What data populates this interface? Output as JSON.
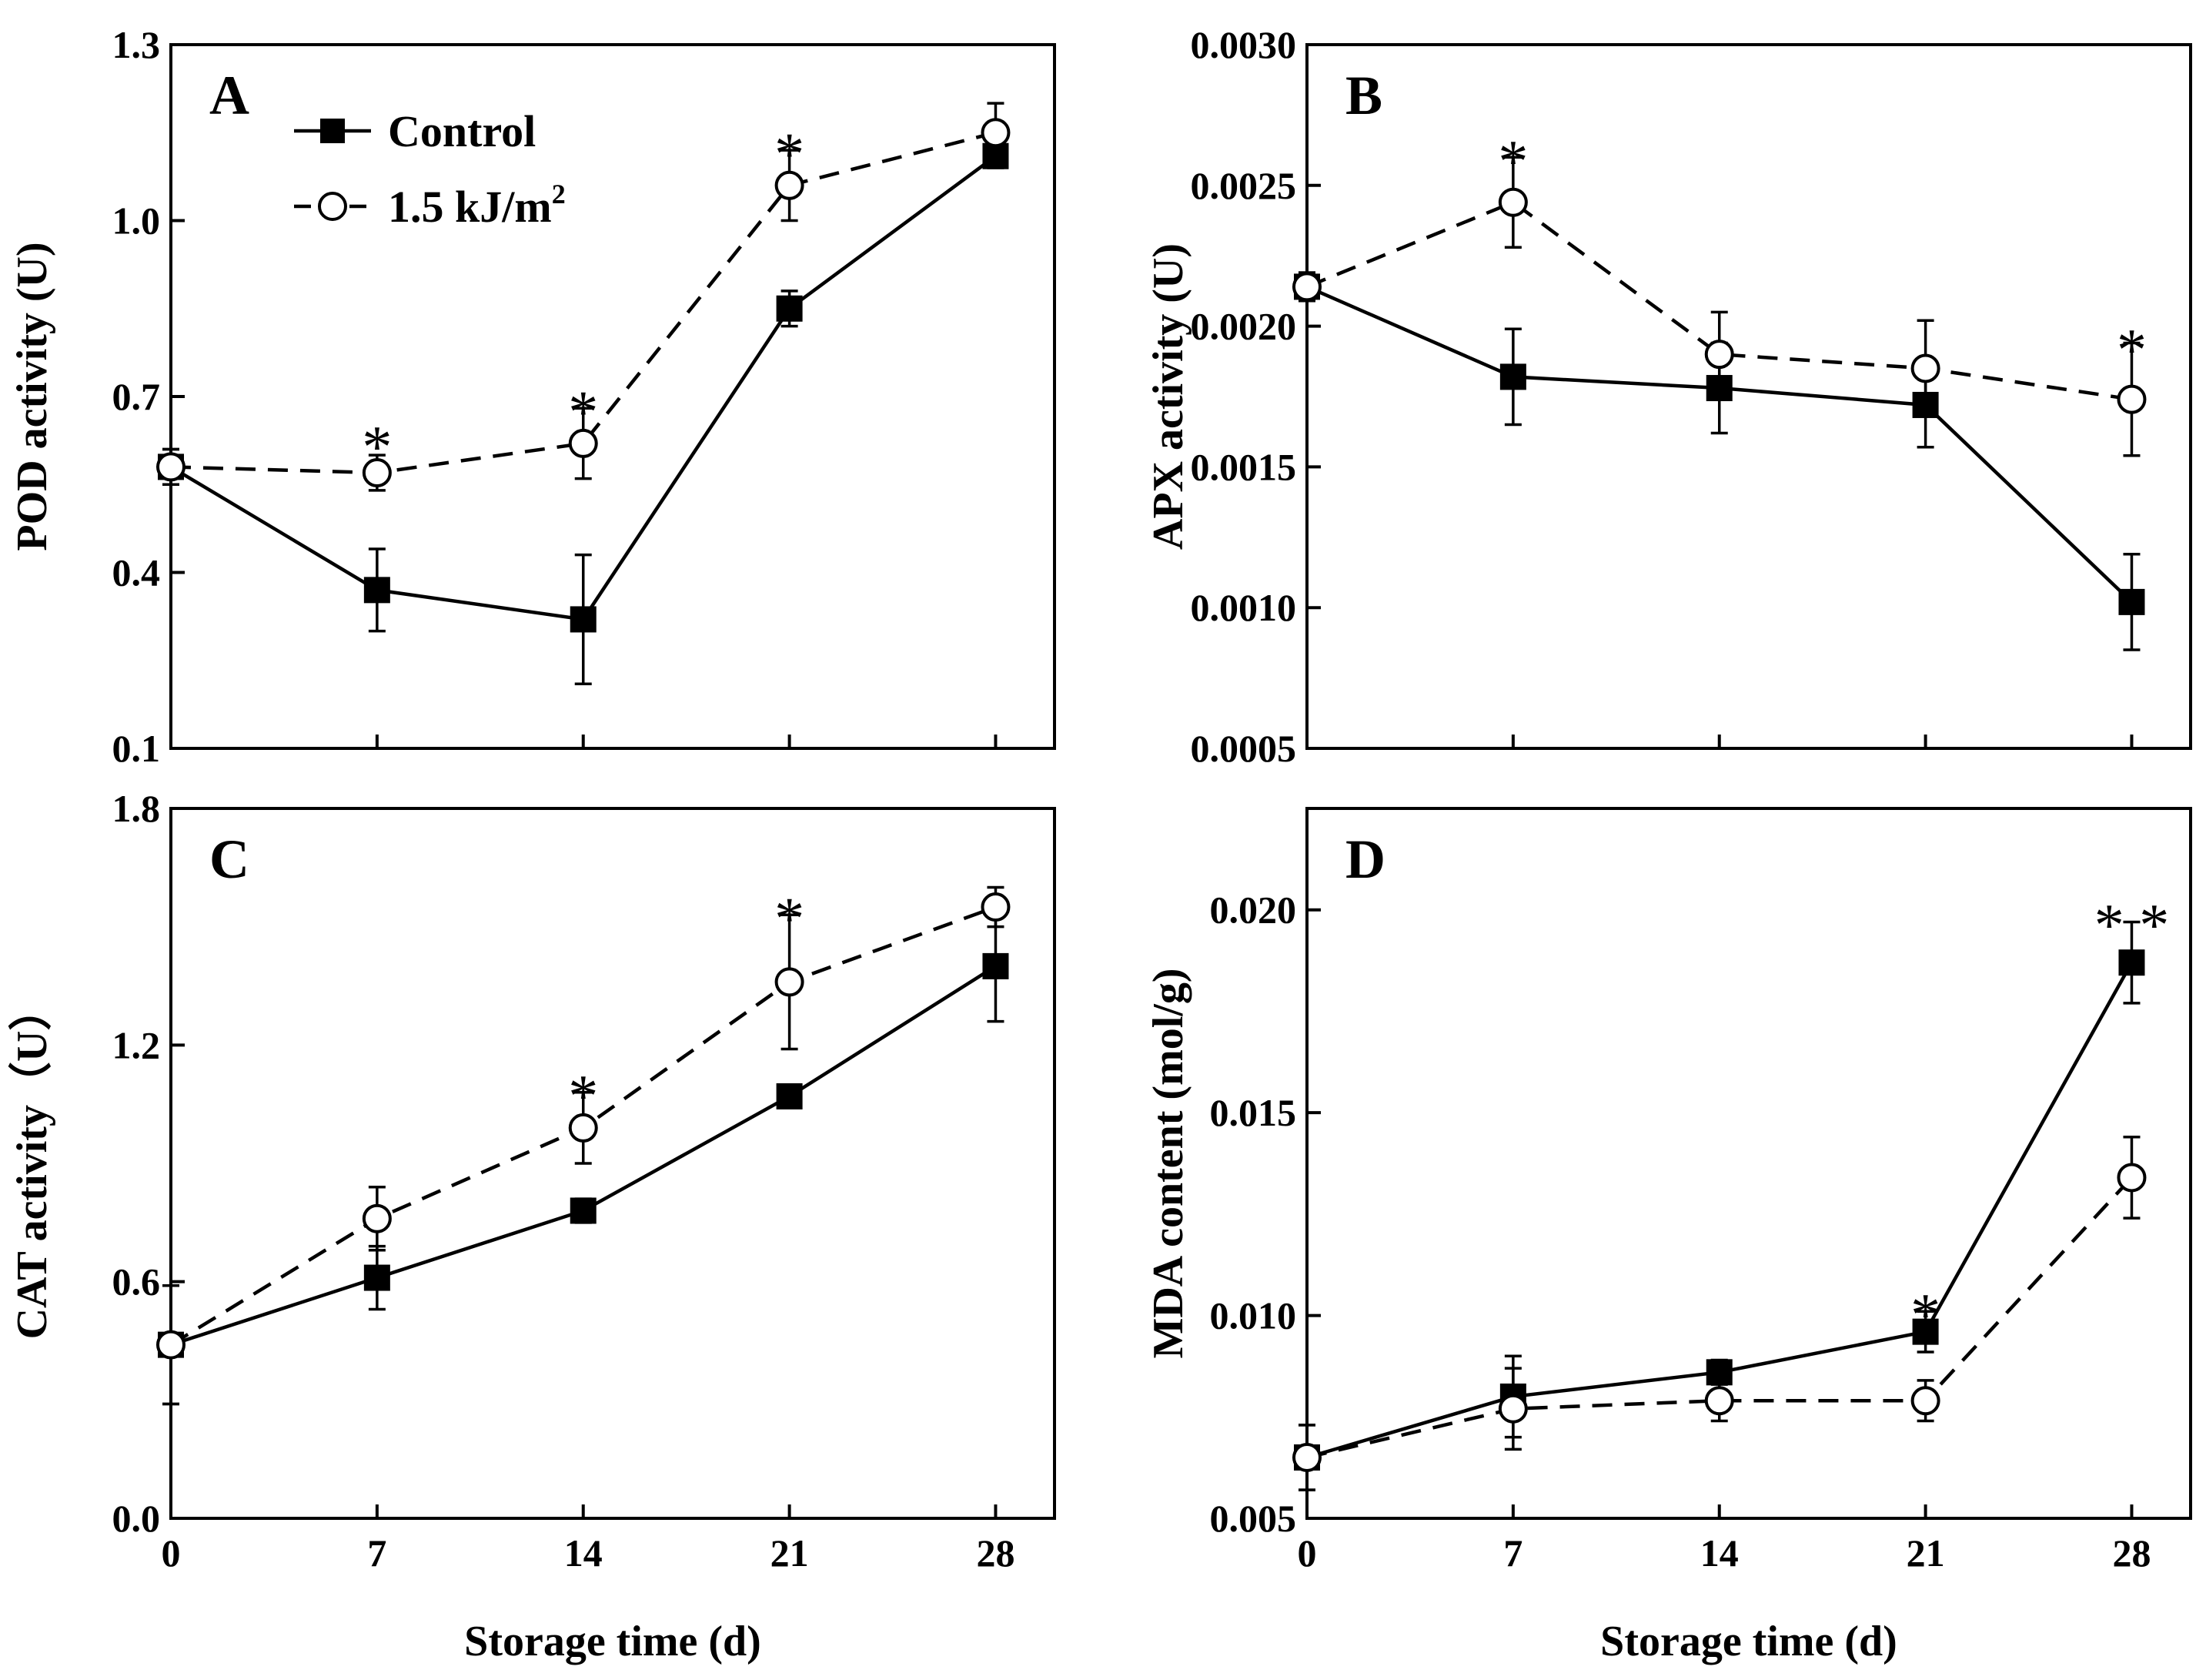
{
  "legend": {
    "control": "Control",
    "treatment_prefix": "1.5 kJ/m",
    "treatment_sup": "2"
  },
  "chart_data": [
    {
      "type": "line",
      "panel": "A",
      "ylabel": "POD activity (U)",
      "xlabel": "",
      "x": [
        0,
        7,
        14,
        21,
        28
      ],
      "xlim": [
        0,
        30
      ],
      "ylim": [
        0.1,
        1.3
      ],
      "yticks": [
        0.1,
        0.4,
        0.7,
        1.0,
        1.3
      ],
      "ytick_labels": [
        "0.1",
        "0.4",
        "0.7",
        "1.0",
        "1.3"
      ],
      "xtick_labels": [],
      "series": [
        {
          "name": "Control",
          "marker": "filled-square",
          "dash": "solid",
          "values": [
            0.58,
            0.37,
            0.32,
            0.85,
            1.11
          ],
          "errors": [
            0.03,
            0.07,
            0.11,
            0.03,
            0.02
          ]
        },
        {
          "name": "1.5 kJ/m2",
          "marker": "open-circle",
          "dash": "dashed",
          "values": [
            0.58,
            0.57,
            0.62,
            1.06,
            1.15
          ],
          "errors": [
            0.03,
            0.03,
            0.06,
            0.06,
            0.05
          ]
        }
      ],
      "annotations": [
        {
          "x": 7,
          "y": 0.64,
          "text": "*"
        },
        {
          "x": 14,
          "y": 0.7,
          "text": "*"
        },
        {
          "x": 21,
          "y": 1.14,
          "text": "*"
        }
      ],
      "legend_position": "top-left"
    },
    {
      "type": "line",
      "panel": "B",
      "ylabel": "APX activity (U)",
      "xlabel": "",
      "x": [
        0,
        7,
        14,
        21,
        28
      ],
      "xlim": [
        0,
        30
      ],
      "ylim": [
        0.0005,
        0.003
      ],
      "yticks": [
        0.0005,
        0.001,
        0.0015,
        0.002,
        0.0025,
        0.003
      ],
      "ytick_labels": [
        "0.0005",
        "0.0010",
        "0.0015",
        "0.0020",
        "0.0025",
        "0.0030"
      ],
      "xtick_labels": [],
      "series": [
        {
          "name": "Control",
          "marker": "filled-square",
          "dash": "solid",
          "values": [
            0.00214,
            0.00182,
            0.00178,
            0.00172,
            0.00102
          ],
          "errors": [
            5e-05,
            0.00017,
            0.00016,
            0.00015,
            0.00017
          ]
        },
        {
          "name": "1.5 kJ/m2",
          "marker": "open-circle",
          "dash": "dashed",
          "values": [
            0.00214,
            0.00244,
            0.0019,
            0.00185,
            0.00174
          ],
          "errors": [
            5e-05,
            0.00016,
            0.00015,
            0.00017,
            0.0002
          ]
        }
      ],
      "annotations": [
        {
          "x": 7,
          "y": 0.00264,
          "text": "*"
        },
        {
          "x": 28,
          "y": 0.00197,
          "text": "*"
        }
      ]
    },
    {
      "type": "line",
      "panel": "C",
      "ylabel": "CAT activity（U）",
      "xlabel": "",
      "x": [
        0,
        7,
        14,
        21,
        28
      ],
      "xlim": [
        0,
        30
      ],
      "ylim": [
        0.0,
        1.8
      ],
      "yticks": [
        0.0,
        0.6,
        1.2,
        1.8
      ],
      "ytick_labels": [
        "0.0",
        "0.6",
        "1.2",
        "1.8"
      ],
      "xtick_labels": [
        "0",
        "7",
        "14",
        "21",
        "28"
      ],
      "series": [
        {
          "name": "Control",
          "marker": "filled-square",
          "dash": "solid",
          "values": [
            0.44,
            0.61,
            0.78,
            1.07,
            1.4
          ],
          "errors": [
            0.15,
            0.08,
            0.03,
            0.02,
            0.14
          ]
        },
        {
          "name": "1.5 kJ/m2",
          "marker": "open-circle",
          "dash": "dashed",
          "values": [
            0.44,
            0.76,
            0.99,
            1.36,
            1.55
          ],
          "errors": [
            0.15,
            0.08,
            0.09,
            0.17,
            0.05
          ]
        }
      ],
      "annotations": [
        {
          "x": 14,
          "y": 1.11,
          "text": "*"
        },
        {
          "x": 21,
          "y": 1.56,
          "text": "*"
        }
      ]
    },
    {
      "type": "line",
      "panel": "D",
      "ylabel": "MDA content (mol/g)",
      "xlabel": "",
      "x": [
        0,
        7,
        14,
        21,
        28
      ],
      "xlim": [
        0,
        30
      ],
      "ylim": [
        0.005,
        0.0225
      ],
      "yticks": [
        0.005,
        0.01,
        0.015,
        0.02
      ],
      "ytick_labels": [
        "0.005",
        "0.010",
        "0.015",
        "0.020"
      ],
      "xtick_labels": [
        "0",
        "7",
        "14",
        "21",
        "28"
      ],
      "series": [
        {
          "name": "Control",
          "marker": "filled-square",
          "dash": "solid",
          "values": [
            0.0065,
            0.008,
            0.0086,
            0.0096,
            0.0187
          ],
          "errors": [
            0.0008,
            0.001,
            0.0003,
            0.0005,
            0.001
          ]
        },
        {
          "name": "1.5 kJ/m2",
          "marker": "open-circle",
          "dash": "dashed",
          "values": [
            0.0065,
            0.0077,
            0.0079,
            0.0079,
            0.0134
          ],
          "errors": [
            0.0008,
            0.001,
            0.0005,
            0.0005,
            0.001
          ]
        }
      ],
      "annotations": [
        {
          "x": 21,
          "y": 0.0104,
          "text": "*"
        },
        {
          "x": 28,
          "y": 0.02,
          "text": "* *"
        }
      ]
    }
  ],
  "x_axis_title": "Storage time (d)"
}
